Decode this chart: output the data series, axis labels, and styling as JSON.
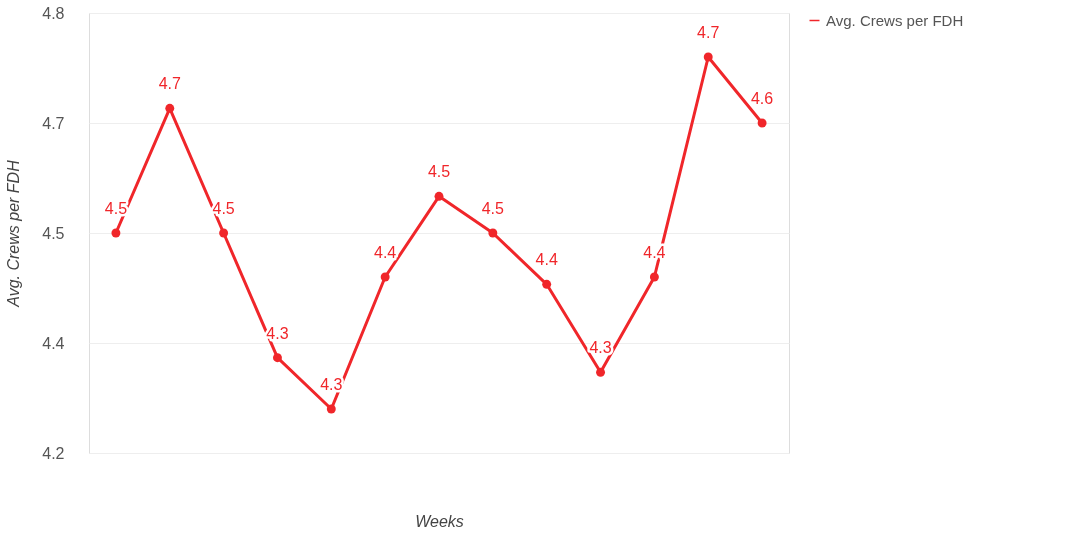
{
  "chart_data": {
    "type": "line",
    "xlabel": "Weeks",
    "ylabel": "Avg. Crews per FDH",
    "categories": [
      null,
      null,
      null,
      null,
      null,
      null,
      null,
      null,
      null,
      null,
      null,
      null,
      null
    ],
    "series": [
      {
        "name": "Avg. Crews per FDH",
        "color": "#f0262a",
        "values": [
          4.5,
          4.67,
          4.5,
          4.33,
          4.26,
          4.44,
          4.55,
          4.5,
          4.43,
          4.31,
          4.44,
          4.74,
          4.65
        ],
        "value_labels": [
          "4.5",
          "4.7",
          "4.5",
          "4.3",
          "4.3",
          "4.4",
          "4.5",
          "4.5",
          "4.4",
          "4.3",
          "4.4",
          "4.7",
          "4.6"
        ]
      }
    ],
    "ylim": [
      4.2,
      4.8
    ],
    "yticks": [
      4.2,
      {
        "value": 4.35,
        "label": "4.4"
      },
      4.5,
      {
        "value": 4.65,
        "label": "4.7"
      },
      4.8
    ],
    "grid": "y",
    "legend": "top right",
    "marker": "circle",
    "line_style": "solid",
    "tick_labels": "y"
  }
}
